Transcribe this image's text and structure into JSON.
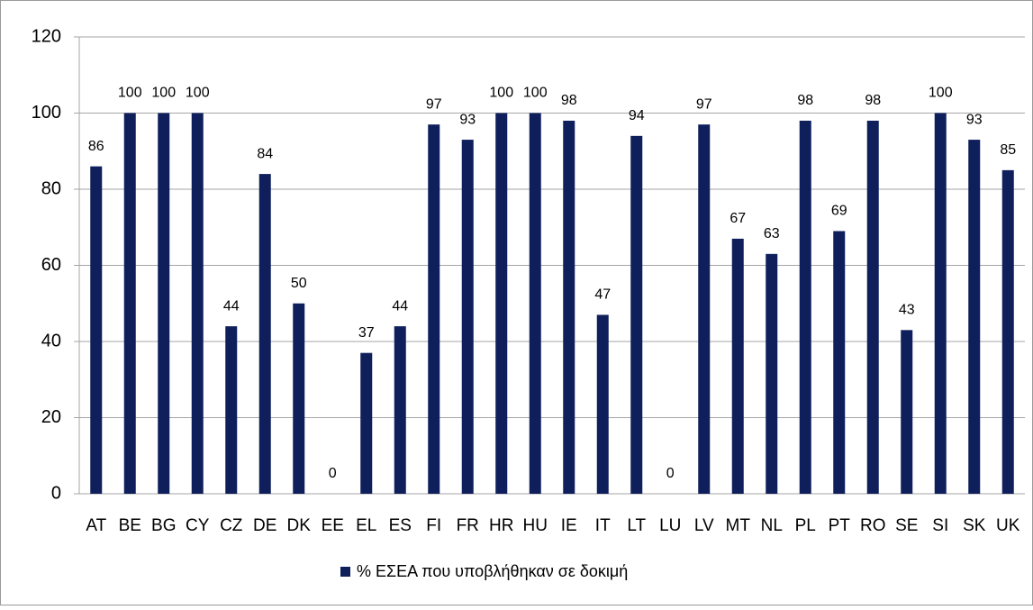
{
  "chart_data": {
    "type": "bar",
    "categories": [
      "AT",
      "BE",
      "BG",
      "CY",
      "CZ",
      "DE",
      "DK",
      "EE",
      "EL",
      "ES",
      "FI",
      "FR",
      "HR",
      "HU",
      "IE",
      "IT",
      "LT",
      "LU",
      "LV",
      "MT",
      "NL",
      "PL",
      "PT",
      "RO",
      "SE",
      "SI",
      "SK",
      "UK"
    ],
    "series": [
      {
        "name": "% ΕΣΕΑ που υποβλήθηκαν σε δοκιμή",
        "color": "#0f1f5c",
        "values": [
          86,
          100,
          100,
          100,
          44,
          84,
          50,
          0,
          37,
          44,
          97,
          93,
          100,
          100,
          98,
          47,
          94,
          0,
          97,
          67,
          63,
          98,
          69,
          98,
          43,
          100,
          93,
          85
        ]
      }
    ],
    "ylim": [
      0,
      120
    ],
    "yticks": [
      0,
      20,
      40,
      60,
      80,
      100,
      120
    ],
    "grid": true,
    "legend": "bottom"
  }
}
